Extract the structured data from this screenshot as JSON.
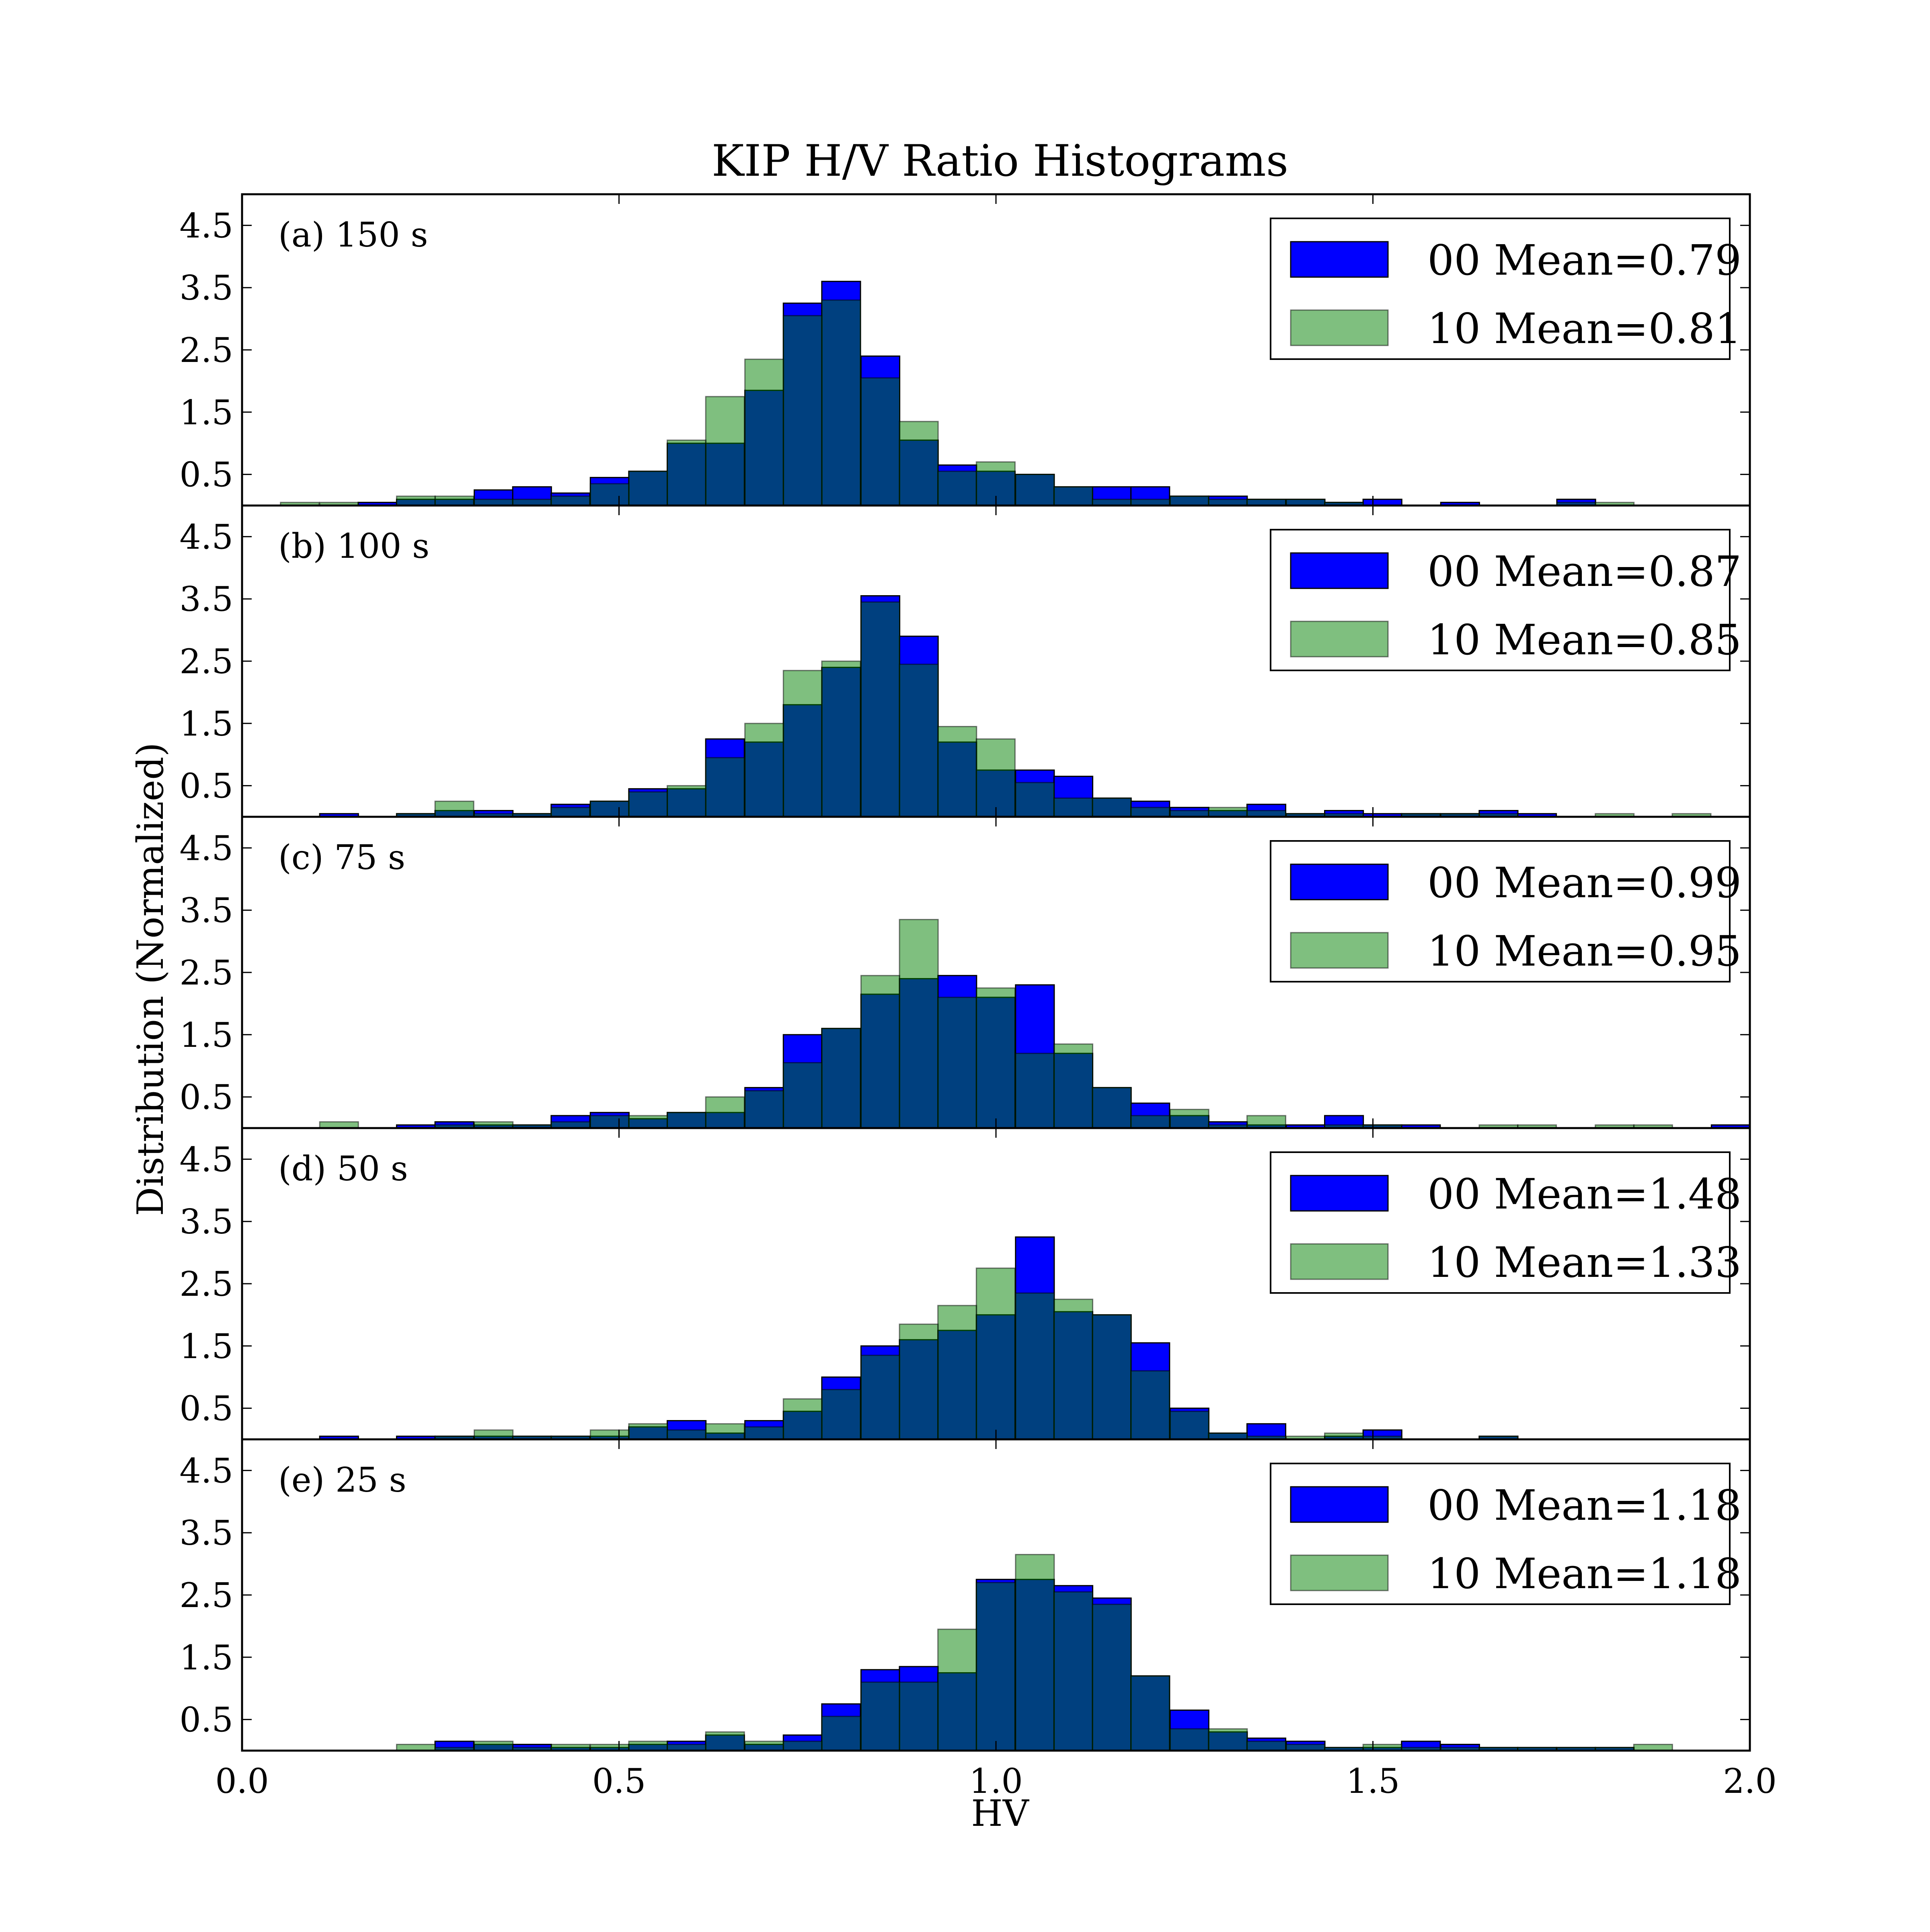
{
  "chart_data": {
    "type": "bar",
    "title": "KIP H/V Ratio Histograms",
    "xlabel": "HV",
    "ylabel": "Distribution (Normalized)",
    "xlim": [
      0.0,
      2.0
    ],
    "ylim": [
      0,
      5
    ],
    "xticks": [
      "0.0",
      "0.5",
      "1.0",
      "1.5",
      "2.0"
    ],
    "xtick_values": [
      0.0,
      0.5,
      1.0,
      1.5,
      2.0
    ],
    "yticks": [
      "0.5",
      "1.5",
      "2.5",
      "3.5",
      "4.5"
    ],
    "ytick_values": [
      0.5,
      1.5,
      2.5,
      3.5,
      4.5
    ],
    "bin_width": 0.05128,
    "grid": false,
    "legend_position": "upper right",
    "series_colors": {
      "00": "#0000ff",
      "10": "#008000",
      "overlap": "#004080"
    },
    "series_opacity": {
      "00": 1.0,
      "10": 0.5
    },
    "panels": [
      {
        "label": "(a) 150 s",
        "legend": [
          "00 Mean=0.79",
          "10 Mean=0.81"
        ],
        "bins": [
          {
            "x": 0.051,
            "s00": 0.0,
            "s10": 0.05
          },
          {
            "x": 0.103,
            "s00": 0.0,
            "s10": 0.05
          },
          {
            "x": 0.154,
            "s00": 0.05,
            "s10": 0.0
          },
          {
            "x": 0.205,
            "s00": 0.1,
            "s10": 0.15
          },
          {
            "x": 0.256,
            "s00": 0.1,
            "s10": 0.15
          },
          {
            "x": 0.308,
            "s00": 0.25,
            "s10": 0.1
          },
          {
            "x": 0.359,
            "s00": 0.3,
            "s10": 0.1
          },
          {
            "x": 0.41,
            "s00": 0.2,
            "s10": 0.15
          },
          {
            "x": 0.462,
            "s00": 0.45,
            "s10": 0.35
          },
          {
            "x": 0.513,
            "s00": 0.55,
            "s10": 0.55
          },
          {
            "x": 0.564,
            "s00": 1.0,
            "s10": 1.05
          },
          {
            "x": 0.615,
            "s00": 1.0,
            "s10": 1.75
          },
          {
            "x": 0.667,
            "s00": 1.85,
            "s10": 2.35
          },
          {
            "x": 0.718,
            "s00": 3.25,
            "s10": 3.05
          },
          {
            "x": 0.769,
            "s00": 3.6,
            "s10": 3.3
          },
          {
            "x": 0.821,
            "s00": 2.4,
            "s10": 2.05
          },
          {
            "x": 0.872,
            "s00": 1.05,
            "s10": 1.35
          },
          {
            "x": 0.923,
            "s00": 0.65,
            "s10": 0.55
          },
          {
            "x": 0.974,
            "s00": 0.55,
            "s10": 0.7
          },
          {
            "x": 1.026,
            "s00": 0.5,
            "s10": 0.5
          },
          {
            "x": 1.077,
            "s00": 0.3,
            "s10": 0.3
          },
          {
            "x": 1.128,
            "s00": 0.3,
            "s10": 0.1
          },
          {
            "x": 1.179,
            "s00": 0.3,
            "s10": 0.1
          },
          {
            "x": 1.231,
            "s00": 0.15,
            "s10": 0.15
          },
          {
            "x": 1.282,
            "s00": 0.15,
            "s10": 0.1
          },
          {
            "x": 1.333,
            "s00": 0.1,
            "s10": 0.1
          },
          {
            "x": 1.385,
            "s00": 0.1,
            "s10": 0.1
          },
          {
            "x": 1.436,
            "s00": 0.05,
            "s10": 0.05
          },
          {
            "x": 1.487,
            "s00": 0.1,
            "s10": 0.0
          },
          {
            "x": 1.538,
            "s00": 0.0,
            "s10": 0.0
          },
          {
            "x": 1.59,
            "s00": 0.05,
            "s10": 0.0
          },
          {
            "x": 1.641,
            "s00": 0.0,
            "s10": 0.0
          },
          {
            "x": 1.692,
            "s00": 0.0,
            "s10": 0.0
          },
          {
            "x": 1.744,
            "s00": 0.1,
            "s10": 0.05
          },
          {
            "x": 1.795,
            "s00": 0.0,
            "s10": 0.05
          }
        ]
      },
      {
        "label": "(b) 100 s",
        "legend": [
          "00 Mean=0.87",
          "10 Mean=0.85"
        ],
        "bins": [
          {
            "x": 0.103,
            "s00": 0.05,
            "s10": 0.0
          },
          {
            "x": 0.205,
            "s00": 0.05,
            "s10": 0.05
          },
          {
            "x": 0.256,
            "s00": 0.1,
            "s10": 0.25
          },
          {
            "x": 0.308,
            "s00": 0.1,
            "s10": 0.05
          },
          {
            "x": 0.359,
            "s00": 0.05,
            "s10": 0.05
          },
          {
            "x": 0.41,
            "s00": 0.2,
            "s10": 0.15
          },
          {
            "x": 0.462,
            "s00": 0.25,
            "s10": 0.25
          },
          {
            "x": 0.513,
            "s00": 0.45,
            "s10": 0.4
          },
          {
            "x": 0.564,
            "s00": 0.45,
            "s10": 0.5
          },
          {
            "x": 0.615,
            "s00": 1.25,
            "s10": 0.95
          },
          {
            "x": 0.667,
            "s00": 1.2,
            "s10": 1.5
          },
          {
            "x": 0.718,
            "s00": 1.8,
            "s10": 2.35
          },
          {
            "x": 0.769,
            "s00": 2.4,
            "s10": 2.5
          },
          {
            "x": 0.821,
            "s00": 3.55,
            "s10": 3.45
          },
          {
            "x": 0.872,
            "s00": 2.9,
            "s10": 2.45
          },
          {
            "x": 0.923,
            "s00": 1.2,
            "s10": 1.45
          },
          {
            "x": 0.974,
            "s00": 0.75,
            "s10": 1.25
          },
          {
            "x": 1.026,
            "s00": 0.75,
            "s10": 0.55
          },
          {
            "x": 1.077,
            "s00": 0.65,
            "s10": 0.3
          },
          {
            "x": 1.128,
            "s00": 0.3,
            "s10": 0.3
          },
          {
            "x": 1.179,
            "s00": 0.25,
            "s10": 0.15
          },
          {
            "x": 1.231,
            "s00": 0.15,
            "s10": 0.1
          },
          {
            "x": 1.282,
            "s00": 0.1,
            "s10": 0.15
          },
          {
            "x": 1.333,
            "s00": 0.2,
            "s10": 0.1
          },
          {
            "x": 1.385,
            "s00": 0.05,
            "s10": 0.05
          },
          {
            "x": 1.436,
            "s00": 0.1,
            "s10": 0.05
          },
          {
            "x": 1.487,
            "s00": 0.05,
            "s10": 0.0
          },
          {
            "x": 1.538,
            "s00": 0.05,
            "s10": 0.05
          },
          {
            "x": 1.59,
            "s00": 0.05,
            "s10": 0.05
          },
          {
            "x": 1.641,
            "s00": 0.1,
            "s10": 0.05
          },
          {
            "x": 1.692,
            "s00": 0.05,
            "s10": 0.0
          },
          {
            "x": 1.795,
            "s00": 0.0,
            "s10": 0.05
          },
          {
            "x": 1.897,
            "s00": 0.0,
            "s10": 0.05
          }
        ]
      },
      {
        "label": "(c) 75 s",
        "legend": [
          "00 Mean=0.99",
          "10 Mean=0.95"
        ],
        "bins": [
          {
            "x": 0.103,
            "s00": 0.0,
            "s10": 0.1
          },
          {
            "x": 0.205,
            "s00": 0.05,
            "s10": 0.0
          },
          {
            "x": 0.256,
            "s00": 0.1,
            "s10": 0.05
          },
          {
            "x": 0.308,
            "s00": 0.05,
            "s10": 0.1
          },
          {
            "x": 0.359,
            "s00": 0.05,
            "s10": 0.05
          },
          {
            "x": 0.41,
            "s00": 0.2,
            "s10": 0.1
          },
          {
            "x": 0.462,
            "s00": 0.25,
            "s10": 0.2
          },
          {
            "x": 0.513,
            "s00": 0.15,
            "s10": 0.2
          },
          {
            "x": 0.564,
            "s00": 0.25,
            "s10": 0.25
          },
          {
            "x": 0.615,
            "s00": 0.25,
            "s10": 0.5
          },
          {
            "x": 0.667,
            "s00": 0.65,
            "s10": 0.6
          },
          {
            "x": 0.718,
            "s00": 1.5,
            "s10": 1.05
          },
          {
            "x": 0.769,
            "s00": 1.6,
            "s10": 1.6
          },
          {
            "x": 0.821,
            "s00": 2.15,
            "s10": 2.45
          },
          {
            "x": 0.872,
            "s00": 2.4,
            "s10": 3.35
          },
          {
            "x": 0.923,
            "s00": 2.45,
            "s10": 2.1
          },
          {
            "x": 0.974,
            "s00": 2.1,
            "s10": 2.25
          },
          {
            "x": 1.026,
            "s00": 2.3,
            "s10": 1.2
          },
          {
            "x": 1.077,
            "s00": 1.2,
            "s10": 1.35
          },
          {
            "x": 1.128,
            "s00": 0.65,
            "s10": 0.65
          },
          {
            "x": 1.179,
            "s00": 0.4,
            "s10": 0.2
          },
          {
            "x": 1.231,
            "s00": 0.2,
            "s10": 0.3
          },
          {
            "x": 1.282,
            "s00": 0.1,
            "s10": 0.05
          },
          {
            "x": 1.333,
            "s00": 0.05,
            "s10": 0.2
          },
          {
            "x": 1.385,
            "s00": 0.05,
            "s10": 0.0
          },
          {
            "x": 1.436,
            "s00": 0.2,
            "s10": 0.05
          },
          {
            "x": 1.487,
            "s00": 0.05,
            "s10": 0.05
          },
          {
            "x": 1.538,
            "s00": 0.05,
            "s10": 0.0
          },
          {
            "x": 1.641,
            "s00": 0.0,
            "s10": 0.05
          },
          {
            "x": 1.692,
            "s00": 0.0,
            "s10": 0.05
          },
          {
            "x": 1.795,
            "s00": 0.0,
            "s10": 0.05
          },
          {
            "x": 1.846,
            "s00": 0.0,
            "s10": 0.05
          },
          {
            "x": 1.949,
            "s00": 0.05,
            "s10": 0.0
          }
        ]
      },
      {
        "label": "(d) 50 s",
        "legend": [
          "00 Mean=1.48",
          "10 Mean=1.33"
        ],
        "bins": [
          {
            "x": 0.103,
            "s00": 0.05,
            "s10": 0.0
          },
          {
            "x": 0.205,
            "s00": 0.05,
            "s10": 0.0
          },
          {
            "x": 0.256,
            "s00": 0.05,
            "s10": 0.05
          },
          {
            "x": 0.308,
            "s00": 0.05,
            "s10": 0.15
          },
          {
            "x": 0.359,
            "s00": 0.05,
            "s10": 0.05
          },
          {
            "x": 0.41,
            "s00": 0.05,
            "s10": 0.05
          },
          {
            "x": 0.462,
            "s00": 0.05,
            "s10": 0.15
          },
          {
            "x": 0.513,
            "s00": 0.2,
            "s10": 0.25
          },
          {
            "x": 0.564,
            "s00": 0.3,
            "s10": 0.15
          },
          {
            "x": 0.615,
            "s00": 0.1,
            "s10": 0.25
          },
          {
            "x": 0.667,
            "s00": 0.3,
            "s10": 0.2
          },
          {
            "x": 0.718,
            "s00": 0.45,
            "s10": 0.65
          },
          {
            "x": 0.769,
            "s00": 1.0,
            "s10": 0.8
          },
          {
            "x": 0.821,
            "s00": 1.5,
            "s10": 1.35
          },
          {
            "x": 0.872,
            "s00": 1.6,
            "s10": 1.85
          },
          {
            "x": 0.923,
            "s00": 1.75,
            "s10": 2.15
          },
          {
            "x": 0.974,
            "s00": 2.0,
            "s10": 2.75
          },
          {
            "x": 1.026,
            "s00": 3.25,
            "s10": 2.35
          },
          {
            "x": 1.077,
            "s00": 2.05,
            "s10": 2.25
          },
          {
            "x": 1.128,
            "s00": 2.0,
            "s10": 2.0
          },
          {
            "x": 1.179,
            "s00": 1.55,
            "s10": 1.1
          },
          {
            "x": 1.231,
            "s00": 0.5,
            "s10": 0.45
          },
          {
            "x": 1.282,
            "s00": 0.1,
            "s10": 0.1
          },
          {
            "x": 1.333,
            "s00": 0.25,
            "s10": 0.05
          },
          {
            "x": 1.385,
            "s00": 0.0,
            "s10": 0.05
          },
          {
            "x": 1.436,
            "s00": 0.05,
            "s10": 0.1
          },
          {
            "x": 1.487,
            "s00": 0.15,
            "s10": 0.05
          },
          {
            "x": 1.641,
            "s00": 0.05,
            "s10": 0.05
          }
        ]
      },
      {
        "label": "(e) 25 s",
        "legend": [
          "00 Mean=1.18",
          "10 Mean=1.18"
        ],
        "bins": [
          {
            "x": 0.205,
            "s00": 0.0,
            "s10": 0.1
          },
          {
            "x": 0.256,
            "s00": 0.15,
            "s10": 0.05
          },
          {
            "x": 0.308,
            "s00": 0.1,
            "s10": 0.15
          },
          {
            "x": 0.359,
            "s00": 0.1,
            "s10": 0.05
          },
          {
            "x": 0.41,
            "s00": 0.05,
            "s10": 0.1
          },
          {
            "x": 0.462,
            "s00": 0.05,
            "s10": 0.1
          },
          {
            "x": 0.513,
            "s00": 0.1,
            "s10": 0.15
          },
          {
            "x": 0.564,
            "s00": 0.15,
            "s10": 0.1
          },
          {
            "x": 0.615,
            "s00": 0.25,
            "s10": 0.3
          },
          {
            "x": 0.667,
            "s00": 0.1,
            "s10": 0.15
          },
          {
            "x": 0.718,
            "s00": 0.25,
            "s10": 0.15
          },
          {
            "x": 0.769,
            "s00": 0.75,
            "s10": 0.55
          },
          {
            "x": 0.821,
            "s00": 1.3,
            "s10": 1.1
          },
          {
            "x": 0.872,
            "s00": 1.35,
            "s10": 1.1
          },
          {
            "x": 0.923,
            "s00": 1.25,
            "s10": 1.95
          },
          {
            "x": 0.974,
            "s00": 2.75,
            "s10": 2.7
          },
          {
            "x": 1.026,
            "s00": 2.75,
            "s10": 3.15
          },
          {
            "x": 1.077,
            "s00": 2.65,
            "s10": 2.55
          },
          {
            "x": 1.128,
            "s00": 2.45,
            "s10": 2.35
          },
          {
            "x": 1.179,
            "s00": 1.2,
            "s10": 1.2
          },
          {
            "x": 1.231,
            "s00": 0.65,
            "s10": 0.35
          },
          {
            "x": 1.282,
            "s00": 0.3,
            "s10": 0.35
          },
          {
            "x": 1.333,
            "s00": 0.2,
            "s10": 0.15
          },
          {
            "x": 1.385,
            "s00": 0.15,
            "s10": 0.1
          },
          {
            "x": 1.436,
            "s00": 0.05,
            "s10": 0.05
          },
          {
            "x": 1.487,
            "s00": 0.05,
            "s10": 0.1
          },
          {
            "x": 1.538,
            "s00": 0.15,
            "s10": 0.05
          },
          {
            "x": 1.59,
            "s00": 0.1,
            "s10": 0.05
          },
          {
            "x": 1.641,
            "s00": 0.05,
            "s10": 0.05
          },
          {
            "x": 1.692,
            "s00": 0.05,
            "s10": 0.05
          },
          {
            "x": 1.744,
            "s00": 0.05,
            "s10": 0.05
          },
          {
            "x": 1.795,
            "s00": 0.05,
            "s10": 0.05
          },
          {
            "x": 1.846,
            "s00": 0.0,
            "s10": 0.1
          }
        ]
      }
    ]
  }
}
